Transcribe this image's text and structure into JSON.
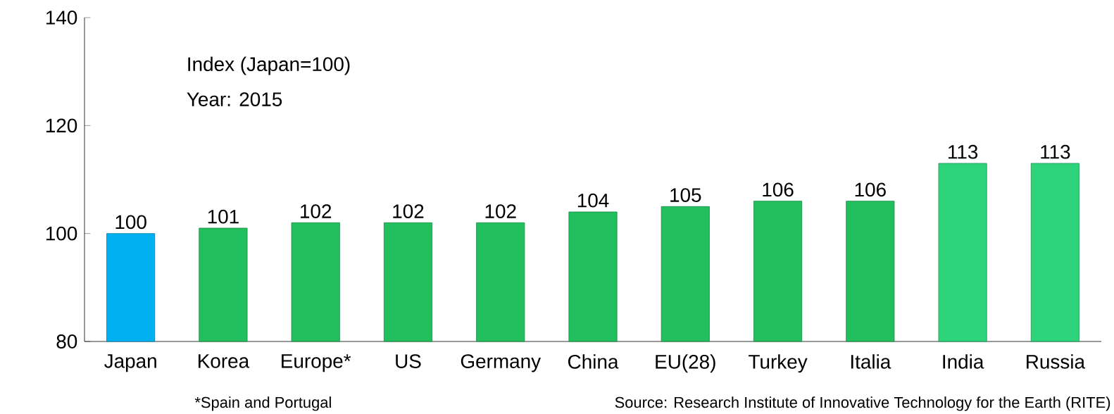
{
  "chart_data": {
    "type": "bar",
    "categories": [
      "Japan",
      "Korea",
      "Europe*",
      "US",
      "Germany",
      "China",
      "EU(28)",
      "Turkey",
      "Italia",
      "India",
      "Russia"
    ],
    "values": [
      100,
      101,
      102,
      102,
      102,
      104,
      105,
      106,
      106,
      113,
      113
    ],
    "colors": [
      "#00b0f0",
      "#22bf5e",
      "#22bf5e",
      "#22bf5e",
      "#22bf5e",
      "#22bf5e",
      "#22bf5e",
      "#22bf5e",
      "#22bf5e",
      "#2ed47a",
      "#2ed47a"
    ],
    "ylim": [
      80,
      140
    ],
    "yticks": [
      80,
      100,
      120,
      140
    ],
    "grid": false,
    "data_labels": true,
    "annotations": [
      "Index (Japan=100)",
      "Year: 2015",
      "*Spain and Portugal",
      "Source: Research Institute of Innovative Technology for the Earth (RITE)"
    ]
  }
}
